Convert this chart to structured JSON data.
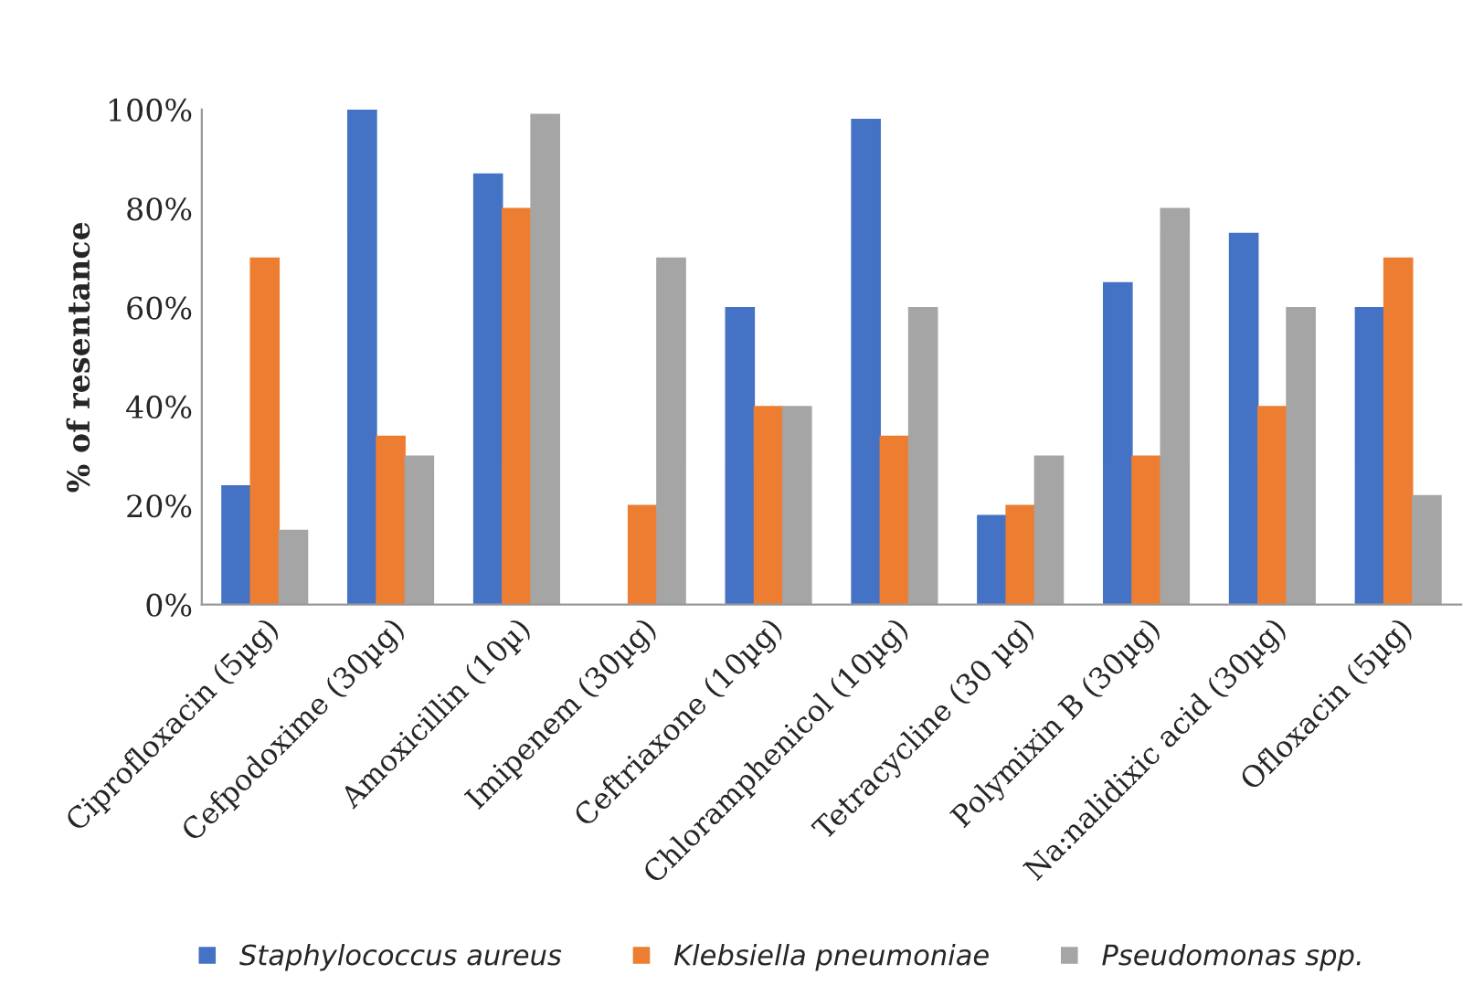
{
  "chart_data": {
    "type": "bar",
    "ylabel": "% of resentance",
    "categories": [
      "Ciprofloxacin (5µg)",
      "Cefpodoxime (30µg)",
      "Amoxicillin (10µ)",
      "Imipenem (30µg)",
      "Ceftriaxone (10µg)",
      "Chloramphenicol (10µg)",
      "Tetracycline (30 µg)",
      "Polymixin B (30µg)",
      "Na:nalidixic acid (30µg)",
      "Ofloxacin (5µg)"
    ],
    "series": [
      {
        "name": "Staphylococcus aureus",
        "color": "#4472c4",
        "values": [
          24,
          100,
          87,
          0,
          60,
          98,
          18,
          65,
          75,
          60
        ]
      },
      {
        "name": "Klebsiella pneumoniae",
        "color": "#ed7d31",
        "values": [
          70,
          34,
          80,
          20,
          40,
          34,
          20,
          30,
          40,
          70
        ]
      },
      {
        "name": "Pseudomonas spp.",
        "color": "#a5a5a5",
        "values": [
          15,
          30,
          99,
          70,
          40,
          60,
          30,
          80,
          60,
          22
        ]
      }
    ],
    "ylim": [
      0,
      100
    ],
    "yticks": [
      {
        "value": 0,
        "label": "0%"
      },
      {
        "value": 20,
        "label": "20%"
      },
      {
        "value": 40,
        "label": "40%"
      },
      {
        "value": 60,
        "label": "60%"
      },
      {
        "value": 80,
        "label": "80%"
      },
      {
        "value": 100,
        "label": "100%"
      }
    ],
    "grid": false,
    "legend": "bottom"
  }
}
